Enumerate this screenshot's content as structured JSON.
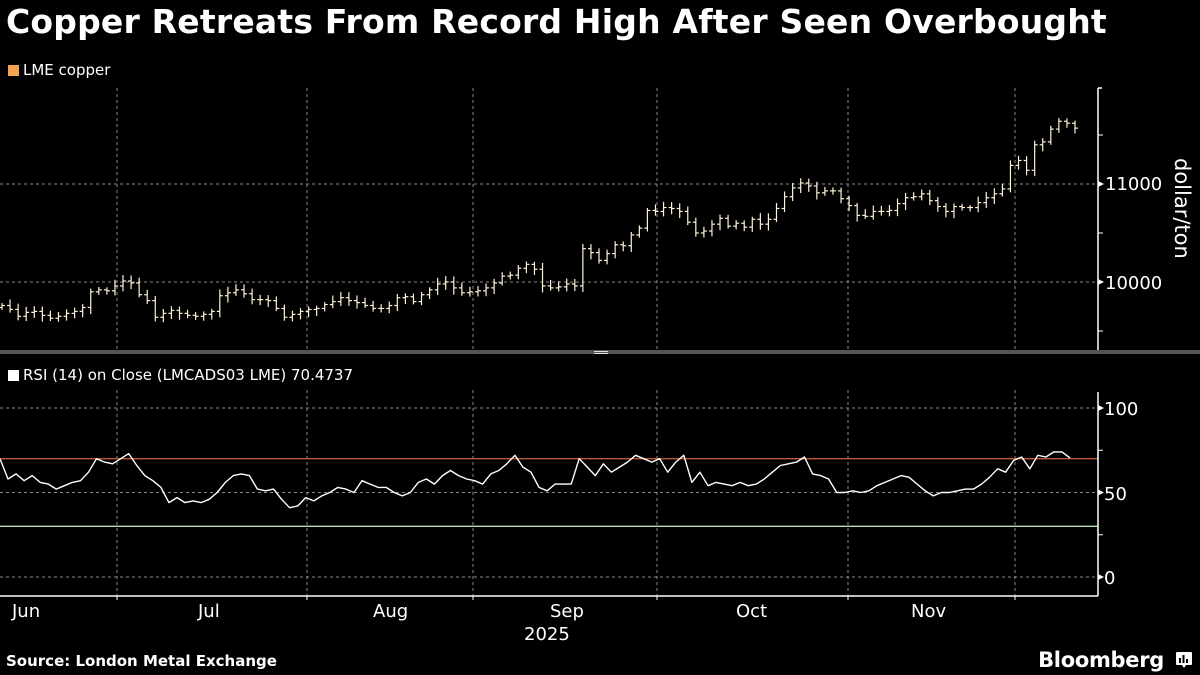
{
  "title": "Copper Retreats From Record High After Seen Overbought",
  "source": "Source: London Metal Exchange",
  "brand": "Bloomberg",
  "colors": {
    "background": "#000000",
    "price_legend": "#f5a253",
    "bars": "#fff3d6",
    "rsi_line": "#ffffff",
    "overbought_line": "#c0583a",
    "oversold_line": "#b7e0b0",
    "grid": "#8a8a8a"
  },
  "chart_data": [
    {
      "type": "ohlc",
      "title": "Copper Retreats From Record High After Seen Overbought",
      "legend": [
        "LME copper"
      ],
      "ylabel": "dollar/ton",
      "yticks": [
        10000,
        11000
      ],
      "ylim": [
        9350,
        12000
      ],
      "x_month_labels": [
        "Jun",
        "Jul",
        "Aug",
        "Sep",
        "Oct",
        "Nov"
      ],
      "x_year_label": "2025",
      "grid": true,
      "closes": [
        9760,
        9720,
        9650,
        9690,
        9700,
        9660,
        9630,
        9650,
        9680,
        9700,
        9740,
        9900,
        9920,
        9910,
        9960,
        10010,
        9990,
        9870,
        9810,
        9640,
        9680,
        9710,
        9680,
        9660,
        9650,
        9670,
        9700,
        9860,
        9890,
        9920,
        9880,
        9820,
        9820,
        9810,
        9730,
        9640,
        9670,
        9700,
        9720,
        9730,
        9770,
        9800,
        9840,
        9810,
        9790,
        9760,
        9730,
        9730,
        9760,
        9840,
        9850,
        9800,
        9870,
        9920,
        9980,
        10000,
        9940,
        9890,
        9900,
        9910,
        9940,
        9990,
        10060,
        10070,
        10140,
        10180,
        10130,
        9960,
        9940,
        9950,
        9980,
        9960,
        10340,
        10300,
        10220,
        10290,
        10380,
        10370,
        10480,
        10550,
        10730,
        10720,
        10760,
        10750,
        10720,
        10610,
        10500,
        10520,
        10590,
        10650,
        10570,
        10600,
        10560,
        10640,
        10590,
        10640,
        10750,
        10870,
        10960,
        11010,
        10980,
        10910,
        10930,
        10930,
        10850,
        10780,
        10680,
        10670,
        10720,
        10720,
        10730,
        10800,
        10860,
        10870,
        10900,
        10830,
        10770,
        10720,
        10770,
        10760,
        10760,
        10810,
        10860,
        10900,
        10950,
        11190,
        11240,
        11140,
        11400,
        11430,
        11560,
        11640,
        11620,
        11570
      ],
      "last_value": 11570
    },
    {
      "type": "line",
      "legend": [
        "RSI (14)  on Close (LMCADS03 LME) 70.4737"
      ],
      "series": [
        {
          "name": "RSI (14)",
          "last": 70.4737
        }
      ],
      "yticks": [
        0,
        50,
        100
      ],
      "ylim": [
        0,
        110
      ],
      "reference_lines": [
        {
          "value": 70,
          "color": "#c0583a"
        },
        {
          "value": 30,
          "color": "#b7e0b0"
        }
      ],
      "values": [
        70,
        58,
        61,
        57,
        60,
        56,
        55,
        52,
        54,
        56,
        57,
        62,
        70,
        68,
        67,
        70,
        73,
        66,
        60,
        57,
        53,
        44,
        47,
        44,
        45,
        44,
        46,
        50,
        56,
        60,
        61,
        60,
        52,
        51,
        52,
        46,
        41,
        42,
        47,
        45,
        48,
        50,
        53,
        52,
        50,
        57,
        55,
        53,
        53,
        50,
        48,
        50,
        56,
        58,
        55,
        60,
        63,
        60,
        58,
        57,
        55,
        61,
        63,
        67,
        72,
        65,
        62,
        53,
        51,
        55,
        55,
        55,
        70,
        65,
        60,
        67,
        62,
        65,
        68,
        72,
        70,
        68,
        70,
        62,
        68,
        72,
        56,
        62,
        54,
        56,
        55,
        54,
        56,
        54,
        55,
        58,
        62,
        66,
        67,
        68,
        71,
        61,
        60,
        58,
        50,
        50,
        51,
        50,
        51,
        54,
        56,
        58,
        60,
        59,
        55,
        51,
        48,
        50,
        50,
        51,
        52,
        52,
        55,
        59,
        64,
        62,
        69,
        71,
        64,
        72,
        71,
        74,
        74,
        70.47
      ]
    }
  ],
  "price_panel": {
    "legend_label": "LME copper",
    "y_axis_label": "dollar/ton",
    "y_ticks": [
      "11000",
      "10000"
    ]
  },
  "rsi_panel": {
    "legend_label": "RSI (14)  on Close (LMCADS03 LME) 70.4737",
    "y_ticks": [
      "100",
      "50",
      "0"
    ]
  },
  "x_axis": {
    "months": [
      "Jun",
      "Jul",
      "Aug",
      "Sep",
      "Oct",
      "Nov"
    ],
    "year": "2025"
  }
}
